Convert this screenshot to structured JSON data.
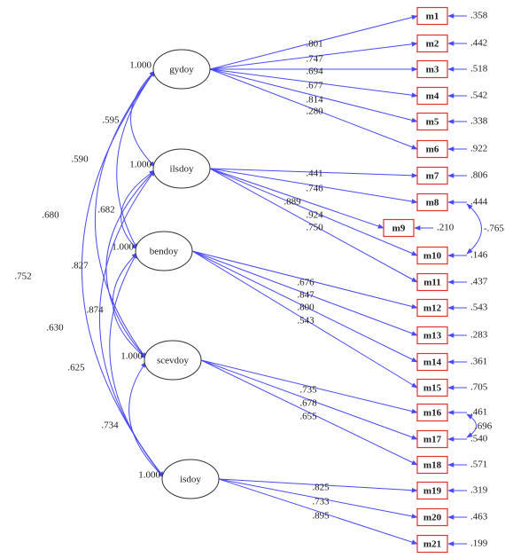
{
  "colors": {
    "path": "#4a4af5",
    "box_border": "#e03030",
    "ellipse_border": "#333333"
  },
  "latents": [
    {
      "id": "gydoy",
      "label": "gydoy",
      "variance": "1.000"
    },
    {
      "id": "ilsdoy",
      "label": "ilsdoy",
      "variance": "1.000"
    },
    {
      "id": "bendoy",
      "label": "bendoy",
      "variance": "1.000"
    },
    {
      "id": "scevdoy",
      "label": "scevdoy",
      "variance": "1.000"
    },
    {
      "id": "isdoy",
      "label": "isdoy",
      "variance": "1.000"
    }
  ],
  "indicators": [
    {
      "id": "m1",
      "label": "m1",
      "error": ".358"
    },
    {
      "id": "m2",
      "label": "m2",
      "error": ".442"
    },
    {
      "id": "m3",
      "label": "m3",
      "error": ".518"
    },
    {
      "id": "m4",
      "label": "m4",
      "error": ".542"
    },
    {
      "id": "m5",
      "label": "m5",
      "error": ".338"
    },
    {
      "id": "m6",
      "label": "m6",
      "error": ".922"
    },
    {
      "id": "m7",
      "label": "m7",
      "error": ".806"
    },
    {
      "id": "m8",
      "label": "m8",
      "error": ".444"
    },
    {
      "id": "m9",
      "label": "m9",
      "error": ".210"
    },
    {
      "id": "m10",
      "label": "m10",
      "error": ".146"
    },
    {
      "id": "m11",
      "label": "m11",
      "error": ".437"
    },
    {
      "id": "m12",
      "label": "m12",
      "error": ".543"
    },
    {
      "id": "m13",
      "label": "m13",
      "error": ".283"
    },
    {
      "id": "m14",
      "label": "m14",
      "error": ".361"
    },
    {
      "id": "m15",
      "label": "m15",
      "error": ".705"
    },
    {
      "id": "m16",
      "label": "m16",
      "error": ".461"
    },
    {
      "id": "m17",
      "label": "m17",
      "error": ".540"
    },
    {
      "id": "m18",
      "label": "m18",
      "error": ".571"
    },
    {
      "id": "m19",
      "label": "m19",
      "error": ".319"
    },
    {
      "id": "m20",
      "label": "m20",
      "error": ".463"
    },
    {
      "id": "m21",
      "label": "m21",
      "error": ".199"
    }
  ],
  "loadings": [
    {
      "from": "gydoy",
      "to": "m1",
      "value": ".801"
    },
    {
      "from": "gydoy",
      "to": "m2",
      "value": ".747"
    },
    {
      "from": "gydoy",
      "to": "m3",
      "value": ".694"
    },
    {
      "from": "gydoy",
      "to": "m4",
      "value": ".677"
    },
    {
      "from": "gydoy",
      "to": "m5",
      "value": ".814"
    },
    {
      "from": "gydoy",
      "to": "m6",
      "value": ".280"
    },
    {
      "from": "ilsdoy",
      "to": "m7",
      "value": ".441"
    },
    {
      "from": "ilsdoy",
      "to": "m8",
      "value": ".746"
    },
    {
      "from": "ilsdoy",
      "to": "m9",
      "value": ".889"
    },
    {
      "from": "ilsdoy",
      "to": "m10",
      "value": ".924"
    },
    {
      "from": "ilsdoy",
      "to": "m11",
      "value": ".750"
    },
    {
      "from": "bendoy",
      "to": "m12",
      "value": ".676"
    },
    {
      "from": "bendoy",
      "to": "m13",
      "value": ".847"
    },
    {
      "from": "bendoy",
      "to": "m14",
      "value": ".800"
    },
    {
      "from": "bendoy",
      "to": "m15",
      "value": ".543"
    },
    {
      "from": "scevdoy",
      "to": "m16",
      "value": ".735"
    },
    {
      "from": "scevdoy",
      "to": "m17",
      "value": ".678"
    },
    {
      "from": "scevdoy",
      "to": "m18",
      "value": ".655"
    },
    {
      "from": "isdoy",
      "to": "m19",
      "value": ".825"
    },
    {
      "from": "isdoy",
      "to": "m20",
      "value": ".733"
    },
    {
      "from": "isdoy",
      "to": "m21",
      "value": ".895"
    }
  ],
  "factor_correlations": [
    {
      "from": "gydoy",
      "to": "ilsdoy",
      "value": ".595"
    },
    {
      "from": "gydoy",
      "to": "bendoy",
      "value": ".590"
    },
    {
      "from": "gydoy",
      "to": "scevdoy",
      "value": ".680"
    },
    {
      "from": "gydoy",
      "to": "isdoy",
      "value": ".752"
    },
    {
      "from": "ilsdoy",
      "to": "bendoy",
      "value": ".682"
    },
    {
      "from": "ilsdoy",
      "to": "scevdoy",
      "value": ".827"
    },
    {
      "from": "ilsdoy",
      "to": "isdoy",
      "value": ".630"
    },
    {
      "from": "bendoy",
      "to": "scevdoy",
      "value": ".874"
    },
    {
      "from": "bendoy",
      "to": "isdoy",
      "value": ".625"
    },
    {
      "from": "scevdoy",
      "to": "isdoy",
      "value": ".734"
    }
  ],
  "error_covariances": [
    {
      "from": "m8",
      "to": "m10",
      "value": "-.765"
    },
    {
      "from": "m16",
      "to": "m17",
      "value": ".696"
    }
  ]
}
